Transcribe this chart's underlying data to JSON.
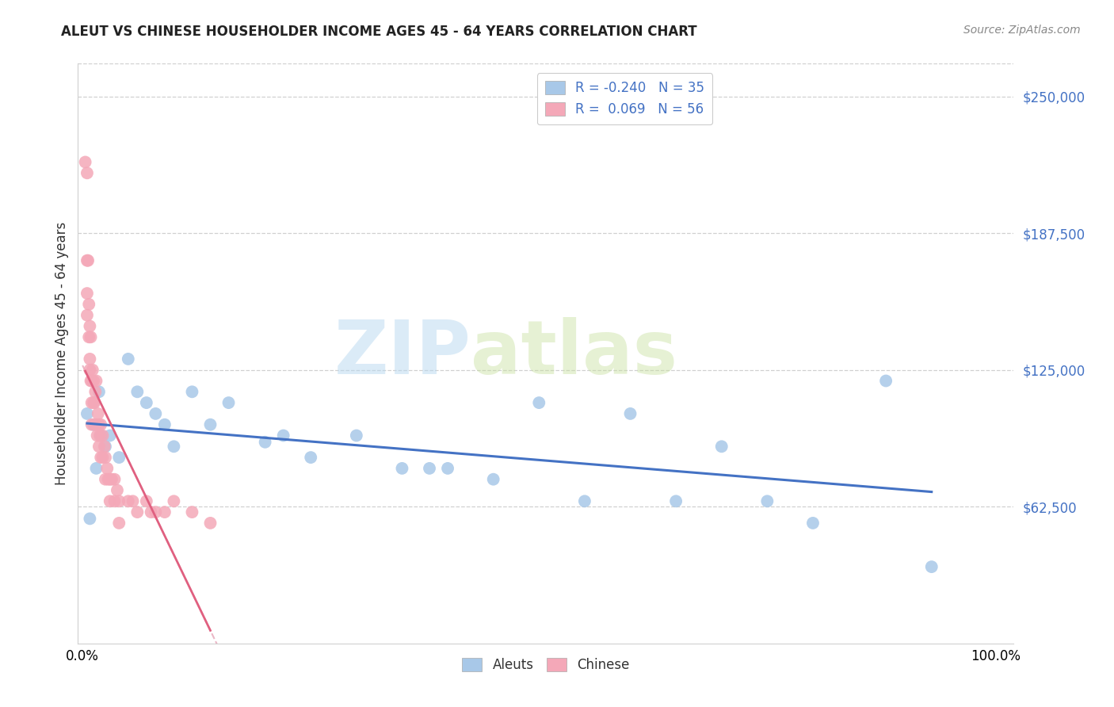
{
  "title": "ALEUT VS CHINESE HOUSEHOLDER INCOME AGES 45 - 64 YEARS CORRELATION CHART",
  "source": "Source: ZipAtlas.com",
  "ylabel": "Householder Income Ages 45 - 64 years",
  "ytick_values": [
    62500,
    125000,
    187500,
    250000
  ],
  "ymin": 0,
  "ymax": 265000,
  "xmin": -0.005,
  "xmax": 1.02,
  "aleuts_color": "#a8c8e8",
  "chinese_color": "#f4a8b8",
  "aleuts_line_color": "#4472c4",
  "chinese_line_color": "#e06080",
  "chinese_dashed_color": "#e8b0c0",
  "watermark_zip": "ZIP",
  "watermark_atlas": "atlas",
  "aleuts_x": [
    0.005,
    0.008,
    0.012,
    0.015,
    0.018,
    0.02,
    0.025,
    0.03,
    0.04,
    0.05,
    0.06,
    0.07,
    0.08,
    0.09,
    0.1,
    0.12,
    0.14,
    0.16,
    0.2,
    0.22,
    0.25,
    0.3,
    0.35,
    0.38,
    0.4,
    0.45,
    0.5,
    0.55,
    0.6,
    0.65,
    0.7,
    0.75,
    0.8,
    0.88,
    0.93
  ],
  "aleuts_y": [
    105000,
    57000,
    100000,
    80000,
    115000,
    95000,
    90000,
    95000,
    85000,
    130000,
    115000,
    110000,
    105000,
    100000,
    90000,
    115000,
    100000,
    110000,
    92000,
    95000,
    85000,
    95000,
    80000,
    80000,
    80000,
    75000,
    110000,
    65000,
    105000,
    65000,
    90000,
    65000,
    55000,
    120000,
    35000
  ],
  "chinese_x": [
    0.003,
    0.005,
    0.005,
    0.005,
    0.005,
    0.006,
    0.007,
    0.007,
    0.008,
    0.008,
    0.008,
    0.009,
    0.009,
    0.01,
    0.01,
    0.01,
    0.011,
    0.012,
    0.012,
    0.013,
    0.013,
    0.014,
    0.015,
    0.015,
    0.016,
    0.017,
    0.018,
    0.018,
    0.019,
    0.02,
    0.02,
    0.022,
    0.022,
    0.024,
    0.025,
    0.025,
    0.027,
    0.028,
    0.03,
    0.03,
    0.032,
    0.035,
    0.035,
    0.038,
    0.04,
    0.04,
    0.05,
    0.055,
    0.06,
    0.07,
    0.075,
    0.08,
    0.09,
    0.1,
    0.12,
    0.14
  ],
  "chinese_y": [
    220000,
    215000,
    175000,
    160000,
    150000,
    175000,
    155000,
    140000,
    130000,
    145000,
    125000,
    120000,
    140000,
    120000,
    110000,
    100000,
    125000,
    120000,
    110000,
    110000,
    100000,
    115000,
    120000,
    100000,
    95000,
    105000,
    100000,
    90000,
    95000,
    100000,
    85000,
    95000,
    85000,
    90000,
    85000,
    75000,
    80000,
    75000,
    75000,
    65000,
    75000,
    75000,
    65000,
    70000,
    65000,
    55000,
    65000,
    65000,
    60000,
    65000,
    60000,
    60000,
    60000,
    65000,
    60000,
    55000
  ]
}
